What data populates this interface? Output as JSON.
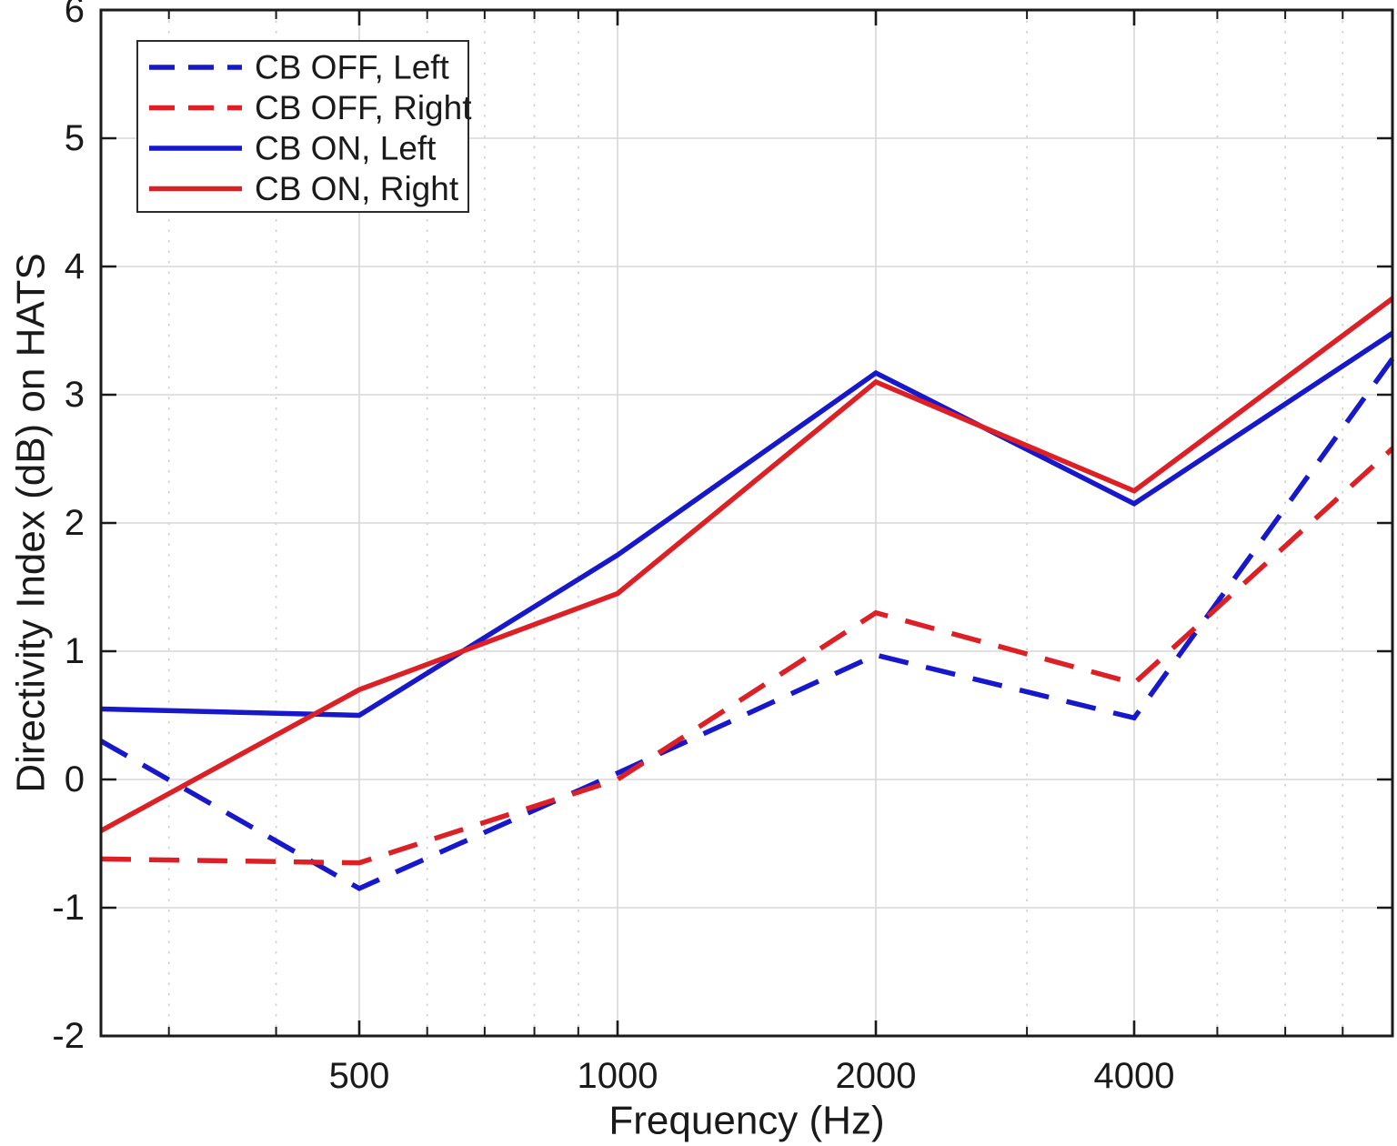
{
  "figure": {
    "background": "#ffffff"
  },
  "chart_data": {
    "type": "line",
    "title": "",
    "xlabel": "Frequency (Hz)",
    "ylabel": "Directivity Index (dB) on HATS",
    "x_scale": "log2",
    "xlim": [
      250,
      8000
    ],
    "ylim": [
      -2,
      6
    ],
    "grid": true,
    "legend_position": "top-left",
    "x_major_ticks": [
      500,
      1000,
      2000,
      4000
    ],
    "x_major_tick_labels": [
      "500",
      "1000",
      "2000",
      "4000"
    ],
    "x_minor_ticks": [
      300,
      400,
      600,
      700,
      800,
      900,
      3000,
      5000,
      6000,
      7000
    ],
    "y_ticks": [
      -2,
      -1,
      0,
      1,
      2,
      3,
      4,
      5,
      6
    ],
    "y_tick_labels": [
      "-2",
      "-1",
      "0",
      "1",
      "2",
      "3",
      "4",
      "5",
      "6"
    ],
    "x": [
      250,
      500,
      1000,
      2000,
      4000,
      8000
    ],
    "series": [
      {
        "name": "CB OFF, Left",
        "color": "#1717CC",
        "style": "dashed",
        "values": [
          0.3,
          -0.85,
          0.05,
          0.97,
          0.48,
          3.28
        ]
      },
      {
        "name": "CB OFF, Right",
        "color": "#DD2025",
        "style": "dashed",
        "values": [
          -0.62,
          -0.65,
          0.0,
          1.3,
          0.75,
          2.58
        ]
      },
      {
        "name": "CB ON, Left",
        "color": "#1717CC",
        "style": "solid",
        "values": [
          0.55,
          0.5,
          1.75,
          3.17,
          2.15,
          3.48
        ]
      },
      {
        "name": "CB ON, Right",
        "color": "#DD2025",
        "style": "solid",
        "values": [
          -0.4,
          0.7,
          1.45,
          3.1,
          2.25,
          3.75
        ]
      }
    ],
    "colors": {
      "blue": "#1717CC",
      "red": "#DD2025",
      "axis": "#1a1a1a",
      "grid_major": "#d7d7d7",
      "grid_minor": "#cfcfcf",
      "legend_border": "#2b2b2b",
      "legend_background": "#ffffff"
    }
  }
}
